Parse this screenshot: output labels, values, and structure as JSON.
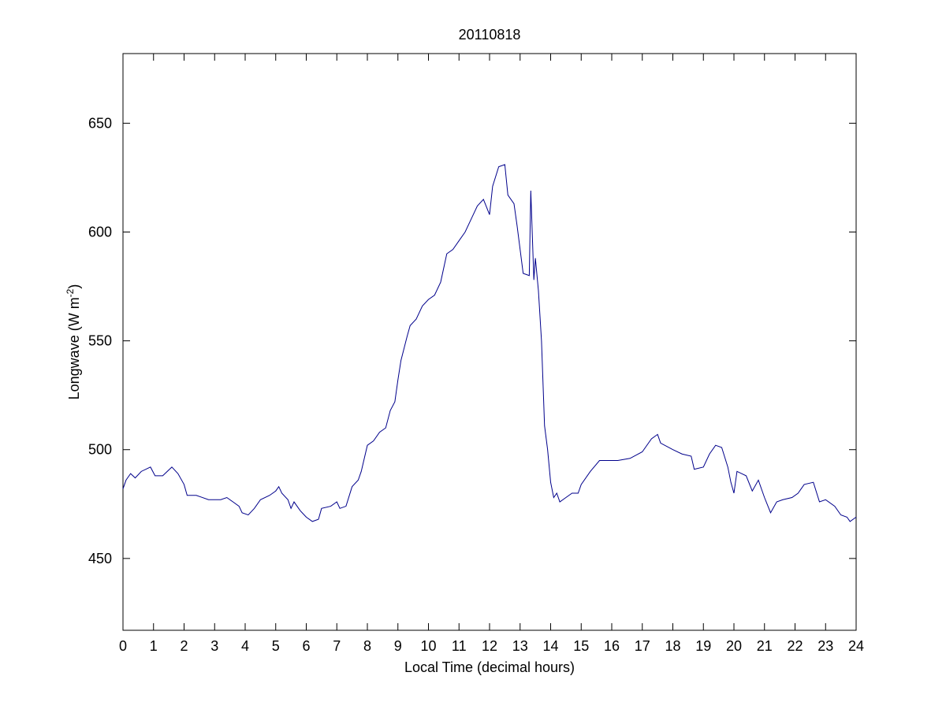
{
  "chart_data": {
    "type": "line",
    "title": "20110818",
    "xlabel": "Local Time (decimal hours)",
    "ylabel": [
      "Longwave (W m",
      "-2",
      ")"
    ],
    "xlim": [
      0,
      24
    ],
    "ylim": [
      417,
      682
    ],
    "xticks": [
      0,
      1,
      2,
      3,
      4,
      5,
      6,
      7,
      8,
      9,
      10,
      11,
      12,
      13,
      14,
      15,
      16,
      17,
      18,
      19,
      20,
      21,
      22,
      23,
      24
    ],
    "yticks": [
      450,
      500,
      550,
      600,
      650
    ],
    "grid": false,
    "series": [
      {
        "color": "#00008b",
        "x": [
          0,
          0.1,
          0.25,
          0.4,
          0.6,
          0.9,
          1.05,
          1.3,
          1.6,
          1.8,
          2.0,
          2.1,
          2.4,
          2.8,
          3.2,
          3.4,
          3.6,
          3.8,
          3.9,
          4.1,
          4.3,
          4.5,
          4.8,
          5.0,
          5.1,
          5.2,
          5.4,
          5.5,
          5.6,
          5.8,
          6.0,
          6.2,
          6.4,
          6.5,
          6.8,
          7.0,
          7.1,
          7.3,
          7.5,
          7.7,
          7.8,
          8.0,
          8.2,
          8.4,
          8.6,
          8.75,
          8.9,
          9.0,
          9.1,
          9.3,
          9.4,
          9.6,
          9.8,
          10.0,
          10.2,
          10.4,
          10.6,
          10.8,
          11.0,
          11.2,
          11.4,
          11.6,
          11.8,
          12.0,
          12.1,
          12.3,
          12.5,
          12.6,
          12.8,
          12.9,
          13.0,
          13.1,
          13.3,
          13.35,
          13.45,
          13.5,
          13.6,
          13.7,
          13.8,
          13.9,
          14.0,
          14.1,
          14.2,
          14.3,
          14.5,
          14.7,
          14.9,
          15.0,
          15.3,
          15.6,
          15.9,
          16.2,
          16.6,
          17.0,
          17.3,
          17.5,
          17.6,
          18.0,
          18.3,
          18.6,
          18.7,
          19.0,
          19.2,
          19.4,
          19.6,
          19.8,
          19.9,
          20.0,
          20.1,
          20.4,
          20.6,
          20.8,
          21.0,
          21.2,
          21.4,
          21.6,
          21.9,
          22.1,
          22.3,
          22.6,
          22.8,
          23.0,
          23.3,
          23.5,
          23.7,
          23.8,
          24.0
        ],
        "values": [
          482,
          486,
          489,
          487,
          490,
          492,
          488,
          488,
          492,
          489,
          484,
          479,
          479,
          477,
          477,
          478,
          476,
          474,
          471,
          470,
          473,
          477,
          479,
          481,
          483,
          480,
          477,
          473,
          476,
          472,
          469,
          467,
          468,
          473,
          474,
          476,
          473,
          474,
          483,
          486,
          490,
          502,
          504,
          508,
          510,
          518,
          522,
          532,
          541,
          552,
          557,
          560,
          566,
          569,
          571,
          577,
          590,
          592,
          596,
          600,
          606,
          612,
          615,
          608,
          621,
          630,
          631,
          617,
          613,
          603,
          592,
          581,
          580,
          619,
          578,
          588,
          573,
          550,
          511,
          500,
          485,
          478,
          480,
          476,
          478,
          480,
          480,
          484,
          490,
          495,
          495,
          495,
          496,
          499,
          505,
          507,
          503,
          500,
          498,
          497,
          491,
          492,
          498,
          502,
          501,
          492,
          485,
          480,
          490,
          488,
          481,
          486,
          478,
          471,
          476,
          477,
          478,
          480,
          484,
          485,
          476,
          477,
          474,
          470,
          469,
          467,
          469
        ]
      }
    ]
  }
}
